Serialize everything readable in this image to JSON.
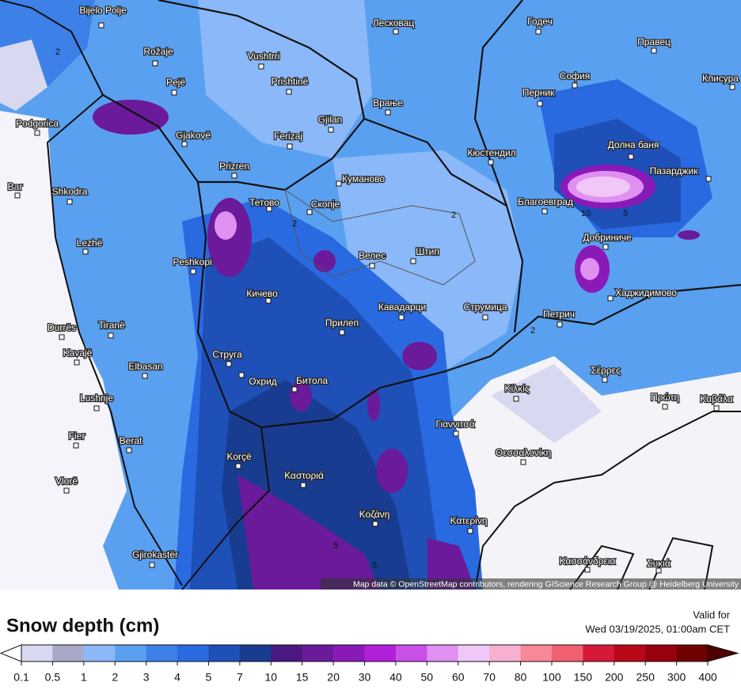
{
  "map": {
    "cities": [
      "Bijelo Polje",
      "Rožaje",
      "Vushtrri",
      "Лесковац",
      "Годеч",
      "Правец",
      "София",
      "Клисура",
      "Pejë",
      "Prishtinë",
      "Врање",
      "Перник",
      "Podgorica",
      "Gjilan",
      "Gjakovë",
      "Ferizaj",
      "Долна баня",
      "Кюстендил",
      "Prizren",
      "Пазарджик",
      "Bar",
      "Shkodra",
      "Куманово",
      "Тетово",
      "Скопје",
      "Благоевград",
      "Добриниче",
      "Lezhë",
      "Peshkopi",
      "Велес",
      "Штип",
      "Кичево",
      "Хаджидимово",
      "Кавадарци",
      "Струмица",
      "Петрич",
      "Durrës",
      "Tiranë",
      "Прилеп",
      "Kavajë",
      "Струга",
      "Elbasan",
      "Σέρρες",
      "Охрид",
      "Битола",
      "Κιλκίς",
      "Lushnje",
      "Πρώτη",
      "Καβάλα",
      "Γιαννιτσά",
      "Fier",
      "Berat",
      "Θεσσαλονίκη",
      "Korçë",
      "Καστοριά",
      "Vlorë",
      "Κοζάνη",
      "Κατερίνη",
      "Gjirokastër",
      "Κασσάνδρεια",
      "Συκιά"
    ],
    "contour_labels": [
      2,
      2,
      2,
      2,
      10,
      5,
      5,
      5
    ],
    "attribution": "Map data © OpenStreetMap contributors, rendering GIScience Research Group @ Heidelberg University"
  },
  "legend": {
    "title": "Snow depth (cm)",
    "valid_label": "Valid for",
    "valid_time": "Wed 03/19/2025, 01:00am CET",
    "ticks": [
      0.1,
      0.5,
      1,
      2,
      3,
      4,
      5,
      7,
      10,
      15,
      20,
      30,
      40,
      50,
      60,
      70,
      80,
      100,
      150,
      200,
      250,
      300,
      400
    ],
    "colors": [
      "#d8d8f0",
      "#a8a8c8",
      "#8ab8f8",
      "#5aa0f0",
      "#3c80e8",
      "#2a6ae0",
      "#1e50b8",
      "#183c90",
      "#4a1a80",
      "#6a1a9a",
      "#8a1ab8",
      "#b020d8",
      "#c850e8",
      "#e090f0",
      "#f0c8f8",
      "#f8b0d0",
      "#f88898",
      "#f06070",
      "#d81838",
      "#b80818",
      "#980010",
      "#700000"
    ],
    "under_color": "#ffffff",
    "over_color": "#500000"
  }
}
